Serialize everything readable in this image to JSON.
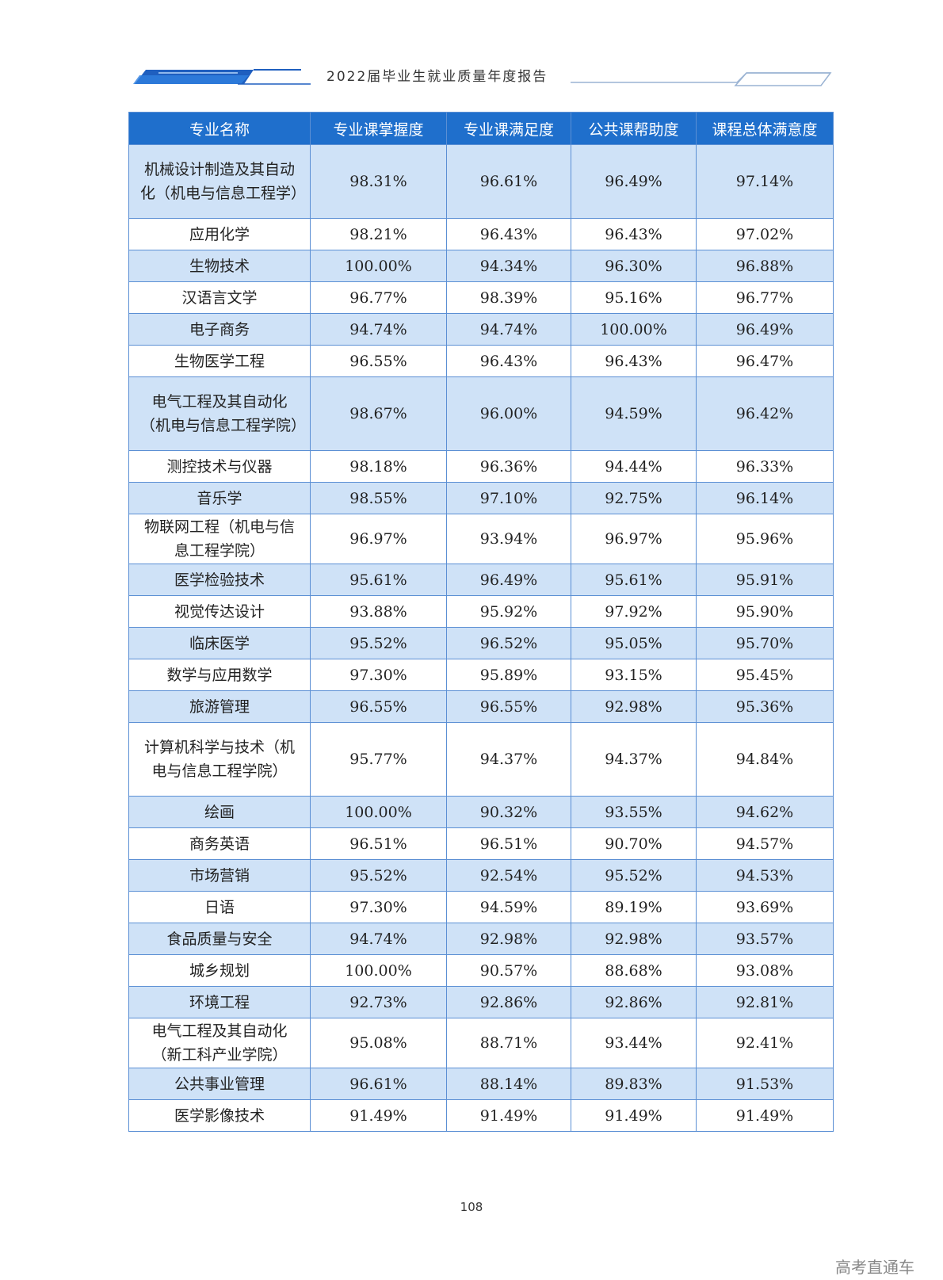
{
  "header": {
    "title": "2022届毕业生就业质量年度报告"
  },
  "table": {
    "columns": [
      "专业名称",
      "专业课掌握度",
      "专业课满足度",
      "公共课帮助度",
      "课程总体满意度"
    ],
    "rows": [
      {
        "name": "机械设计制造及其自动化（机电与信息工程学）",
        "c1": "98.31%",
        "c2": "96.61%",
        "c3": "96.49%",
        "c4": "97.14%"
      },
      {
        "name": "应用化学",
        "c1": "98.21%",
        "c2": "96.43%",
        "c3": "96.43%",
        "c4": "97.02%"
      },
      {
        "name": "生物技术",
        "c1": "100.00%",
        "c2": "94.34%",
        "c3": "96.30%",
        "c4": "96.88%"
      },
      {
        "name": "汉语言文学",
        "c1": "96.77%",
        "c2": "98.39%",
        "c3": "95.16%",
        "c4": "96.77%"
      },
      {
        "name": "电子商务",
        "c1": "94.74%",
        "c2": "94.74%",
        "c3": "100.00%",
        "c4": "96.49%"
      },
      {
        "name": "生物医学工程",
        "c1": "96.55%",
        "c2": "96.43%",
        "c3": "96.43%",
        "c4": "96.47%"
      },
      {
        "name": "电气工程及其自动化（机电与信息工程学院）",
        "c1": "98.67%",
        "c2": "96.00%",
        "c3": "94.59%",
        "c4": "96.42%"
      },
      {
        "name": "测控技术与仪器",
        "c1": "98.18%",
        "c2": "96.36%",
        "c3": "94.44%",
        "c4": "96.33%"
      },
      {
        "name": "音乐学",
        "c1": "98.55%",
        "c2": "97.10%",
        "c3": "92.75%",
        "c4": "96.14%"
      },
      {
        "name": "物联网工程（机电与信息工程学院）",
        "c1": "96.97%",
        "c2": "93.94%",
        "c3": "96.97%",
        "c4": "95.96%"
      },
      {
        "name": "医学检验技术",
        "c1": "95.61%",
        "c2": "96.49%",
        "c3": "95.61%",
        "c4": "95.91%"
      },
      {
        "name": "视觉传达设计",
        "c1": "93.88%",
        "c2": "95.92%",
        "c3": "97.92%",
        "c4": "95.90%"
      },
      {
        "name": "临床医学",
        "c1": "95.52%",
        "c2": "96.52%",
        "c3": "95.05%",
        "c4": "95.70%"
      },
      {
        "name": "数学与应用数学",
        "c1": "97.30%",
        "c2": "95.89%",
        "c3": "93.15%",
        "c4": "95.45%"
      },
      {
        "name": "旅游管理",
        "c1": "96.55%",
        "c2": "96.55%",
        "c3": "92.98%",
        "c4": "95.36%"
      },
      {
        "name": "计算机科学与技术（机电与信息工程学院）",
        "c1": "95.77%",
        "c2": "94.37%",
        "c3": "94.37%",
        "c4": "94.84%"
      },
      {
        "name": "绘画",
        "c1": "100.00%",
        "c2": "90.32%",
        "c3": "93.55%",
        "c4": "94.62%"
      },
      {
        "name": "商务英语",
        "c1": "96.51%",
        "c2": "96.51%",
        "c3": "90.70%",
        "c4": "94.57%"
      },
      {
        "name": "市场营销",
        "c1": "95.52%",
        "c2": "92.54%",
        "c3": "95.52%",
        "c4": "94.53%"
      },
      {
        "name": "日语",
        "c1": "97.30%",
        "c2": "94.59%",
        "c3": "89.19%",
        "c4": "93.69%"
      },
      {
        "name": "食品质量与安全",
        "c1": "94.74%",
        "c2": "92.98%",
        "c3": "92.98%",
        "c4": "93.57%"
      },
      {
        "name": "城乡规划",
        "c1": "100.00%",
        "c2": "90.57%",
        "c3": "88.68%",
        "c4": "93.08%"
      },
      {
        "name": "环境工程",
        "c1": "92.73%",
        "c2": "92.86%",
        "c3": "92.86%",
        "c4": "92.81%"
      },
      {
        "name": "电气工程及其自动化（新工科产业学院）",
        "c1": "95.08%",
        "c2": "88.71%",
        "c3": "93.44%",
        "c4": "92.41%"
      },
      {
        "name": "公共事业管理",
        "c1": "96.61%",
        "c2": "88.14%",
        "c3": "89.83%",
        "c4": "91.53%"
      },
      {
        "name": "医学影像技术",
        "c1": "91.49%",
        "c2": "91.49%",
        "c3": "91.49%",
        "c4": "91.49%"
      }
    ]
  },
  "footer": {
    "page_number": "108",
    "watermark": "高考直通车"
  },
  "colors": {
    "header_bg": "#1f6fcc",
    "alt_row": "#cfe2f7",
    "border": "#5b8fd4"
  }
}
